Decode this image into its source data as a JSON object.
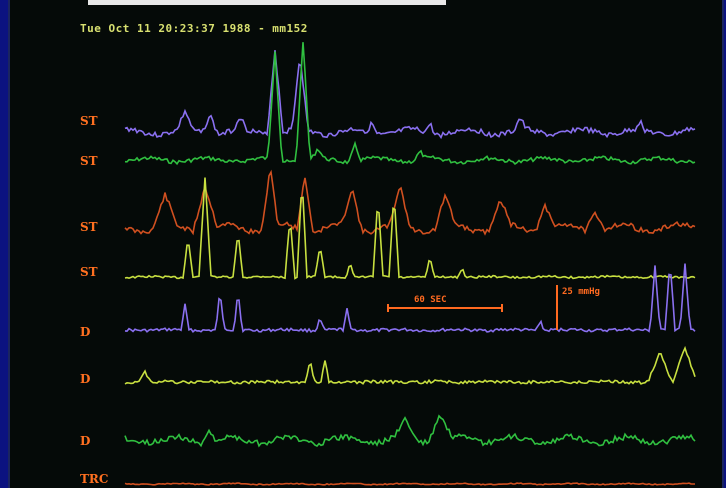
{
  "header": {
    "timestamp_text": "Tue Oct 11 20:23:37 1988 - mm152"
  },
  "leads": [
    {
      "label": "ST",
      "color": "#8a70f0"
    },
    {
      "label": "ST",
      "color": "#30c040"
    },
    {
      "label": "ST",
      "color": "#d05020"
    },
    {
      "label": "ST",
      "color": "#c8e040"
    },
    {
      "label": "D",
      "color": "#8a70f0"
    },
    {
      "label": "D",
      "color": "#c8e040"
    },
    {
      "label": "D",
      "color": "#30c040"
    },
    {
      "label": "TRC",
      "color": "#d05020"
    }
  ],
  "annotations": {
    "time_scale": "60 SEC",
    "pressure_scale": "25 mmHg"
  },
  "colors": {
    "background": "#050a08",
    "frame": "#0b1280",
    "label": "#ff7020",
    "header": "#d8e070"
  }
}
